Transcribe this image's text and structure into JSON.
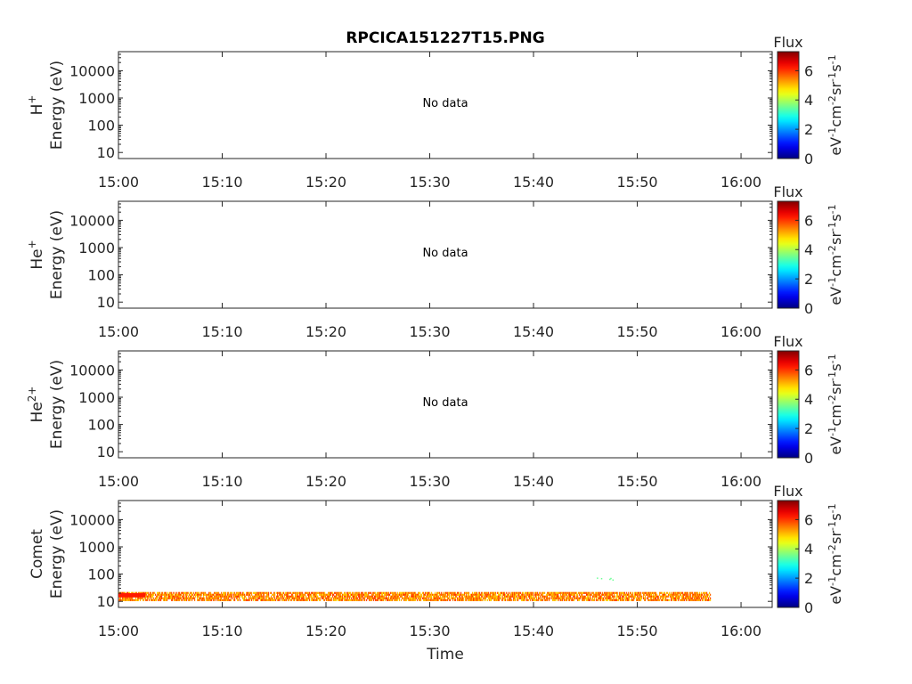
{
  "title": "RPCICA151227T15.PNG",
  "xlabel": "Time",
  "chart_data": [
    {
      "type": "heatmap",
      "species": "H",
      "species_sup": "+",
      "ylabel": "Energy (eV)",
      "ylog": true,
      "ylim": [
        6,
        50000
      ],
      "yticks": [
        10,
        100,
        1000,
        10000
      ],
      "ytick_labels": [
        "10",
        "100",
        "1000",
        "10000"
      ],
      "xlim_minutes": [
        0,
        63
      ],
      "xticks": [
        "15:00",
        "15:10",
        "15:20",
        "15:30",
        "15:40",
        "15:50",
        "16:00"
      ],
      "annotation": "No data",
      "colorbar": {
        "title": "Flux",
        "unit_base": [
          "eV",
          "cm",
          "sr",
          "s"
        ],
        "unit_exp": [
          "-1",
          "-2",
          "-1",
          "-1"
        ],
        "ticks": [
          "0",
          "2",
          "4",
          "6"
        ],
        "range": [
          0,
          7.3
        ]
      }
    },
    {
      "type": "heatmap",
      "species": "He",
      "species_sup": "+",
      "ylabel": "Energy (eV)",
      "ylog": true,
      "ylim": [
        6,
        50000
      ],
      "yticks": [
        10,
        100,
        1000,
        10000
      ],
      "ytick_labels": [
        "10",
        "100",
        "1000",
        "10000"
      ],
      "xlim_minutes": [
        0,
        63
      ],
      "xticks": [
        "15:00",
        "15:10",
        "15:20",
        "15:30",
        "15:40",
        "15:50",
        "16:00"
      ],
      "annotation": "No data",
      "colorbar": {
        "title": "Flux",
        "unit_base": [
          "eV",
          "cm",
          "sr",
          "s"
        ],
        "unit_exp": [
          "-1",
          "-2",
          "-1",
          "-1"
        ],
        "ticks": [
          "0",
          "2",
          "4",
          "6"
        ],
        "range": [
          0,
          7.3
        ]
      }
    },
    {
      "type": "heatmap",
      "species": "He",
      "species_sup": "2+",
      "ylabel": "Energy (eV)",
      "ylog": true,
      "ylim": [
        6,
        50000
      ],
      "yticks": [
        10,
        100,
        1000,
        10000
      ],
      "ytick_labels": [
        "10",
        "100",
        "1000",
        "10000"
      ],
      "xlim_minutes": [
        0,
        63
      ],
      "xticks": [
        "15:00",
        "15:10",
        "15:20",
        "15:30",
        "15:40",
        "15:50",
        "16:00"
      ],
      "annotation": "No data",
      "colorbar": {
        "title": "Flux",
        "unit_base": [
          "eV",
          "cm",
          "sr",
          "s"
        ],
        "unit_exp": [
          "-1",
          "-2",
          "-1",
          "-1"
        ],
        "ticks": [
          "0",
          "2",
          "4",
          "6"
        ],
        "range": [
          0,
          7.3
        ]
      }
    },
    {
      "type": "heatmap",
      "species": "Comet",
      "species_sup": "",
      "ylabel": "Energy (eV)",
      "ylog": true,
      "ylim": [
        6,
        50000
      ],
      "yticks": [
        10,
        100,
        1000,
        10000
      ],
      "ytick_labels": [
        "10",
        "100",
        "1000",
        "10000"
      ],
      "xlim_minutes": [
        0,
        63
      ],
      "xticks": [
        "15:00",
        "15:10",
        "15:20",
        "15:30",
        "15:40",
        "15:50",
        "16:00"
      ],
      "annotation": "",
      "colorbar": {
        "title": "Flux",
        "unit_base": [
          "eV",
          "cm",
          "sr",
          "s"
        ],
        "unit_exp": [
          "-1",
          "-2",
          "-1",
          "-1"
        ],
        "ticks": [
          "0",
          "2",
          "4",
          "6"
        ],
        "range": [
          0,
          7.3
        ]
      },
      "band": {
        "t_start_min": 0,
        "t_end_min": 57,
        "e_low_ev": 12,
        "e_high_ev": 22,
        "flux_typical": 5.5,
        "early_segment": {
          "t_start_min": 0,
          "t_end_min": 2.6,
          "e_low_ev": 14,
          "e_high_ev": 20,
          "flux": 6.2
        }
      },
      "sparse_points": [
        {
          "t_min": 46.1,
          "e_ev": 75,
          "flux": 3.5
        },
        {
          "t_min": 46.5,
          "e_ev": 72,
          "flux": 3.5
        },
        {
          "t_min": 47.3,
          "e_ev": 68,
          "flux": 3.5
        },
        {
          "t_min": 47.6,
          "e_ev": 64,
          "flux": 3.5
        },
        {
          "t_min": 47.4,
          "e_ev": 73,
          "flux": 3.5
        }
      ]
    }
  ]
}
